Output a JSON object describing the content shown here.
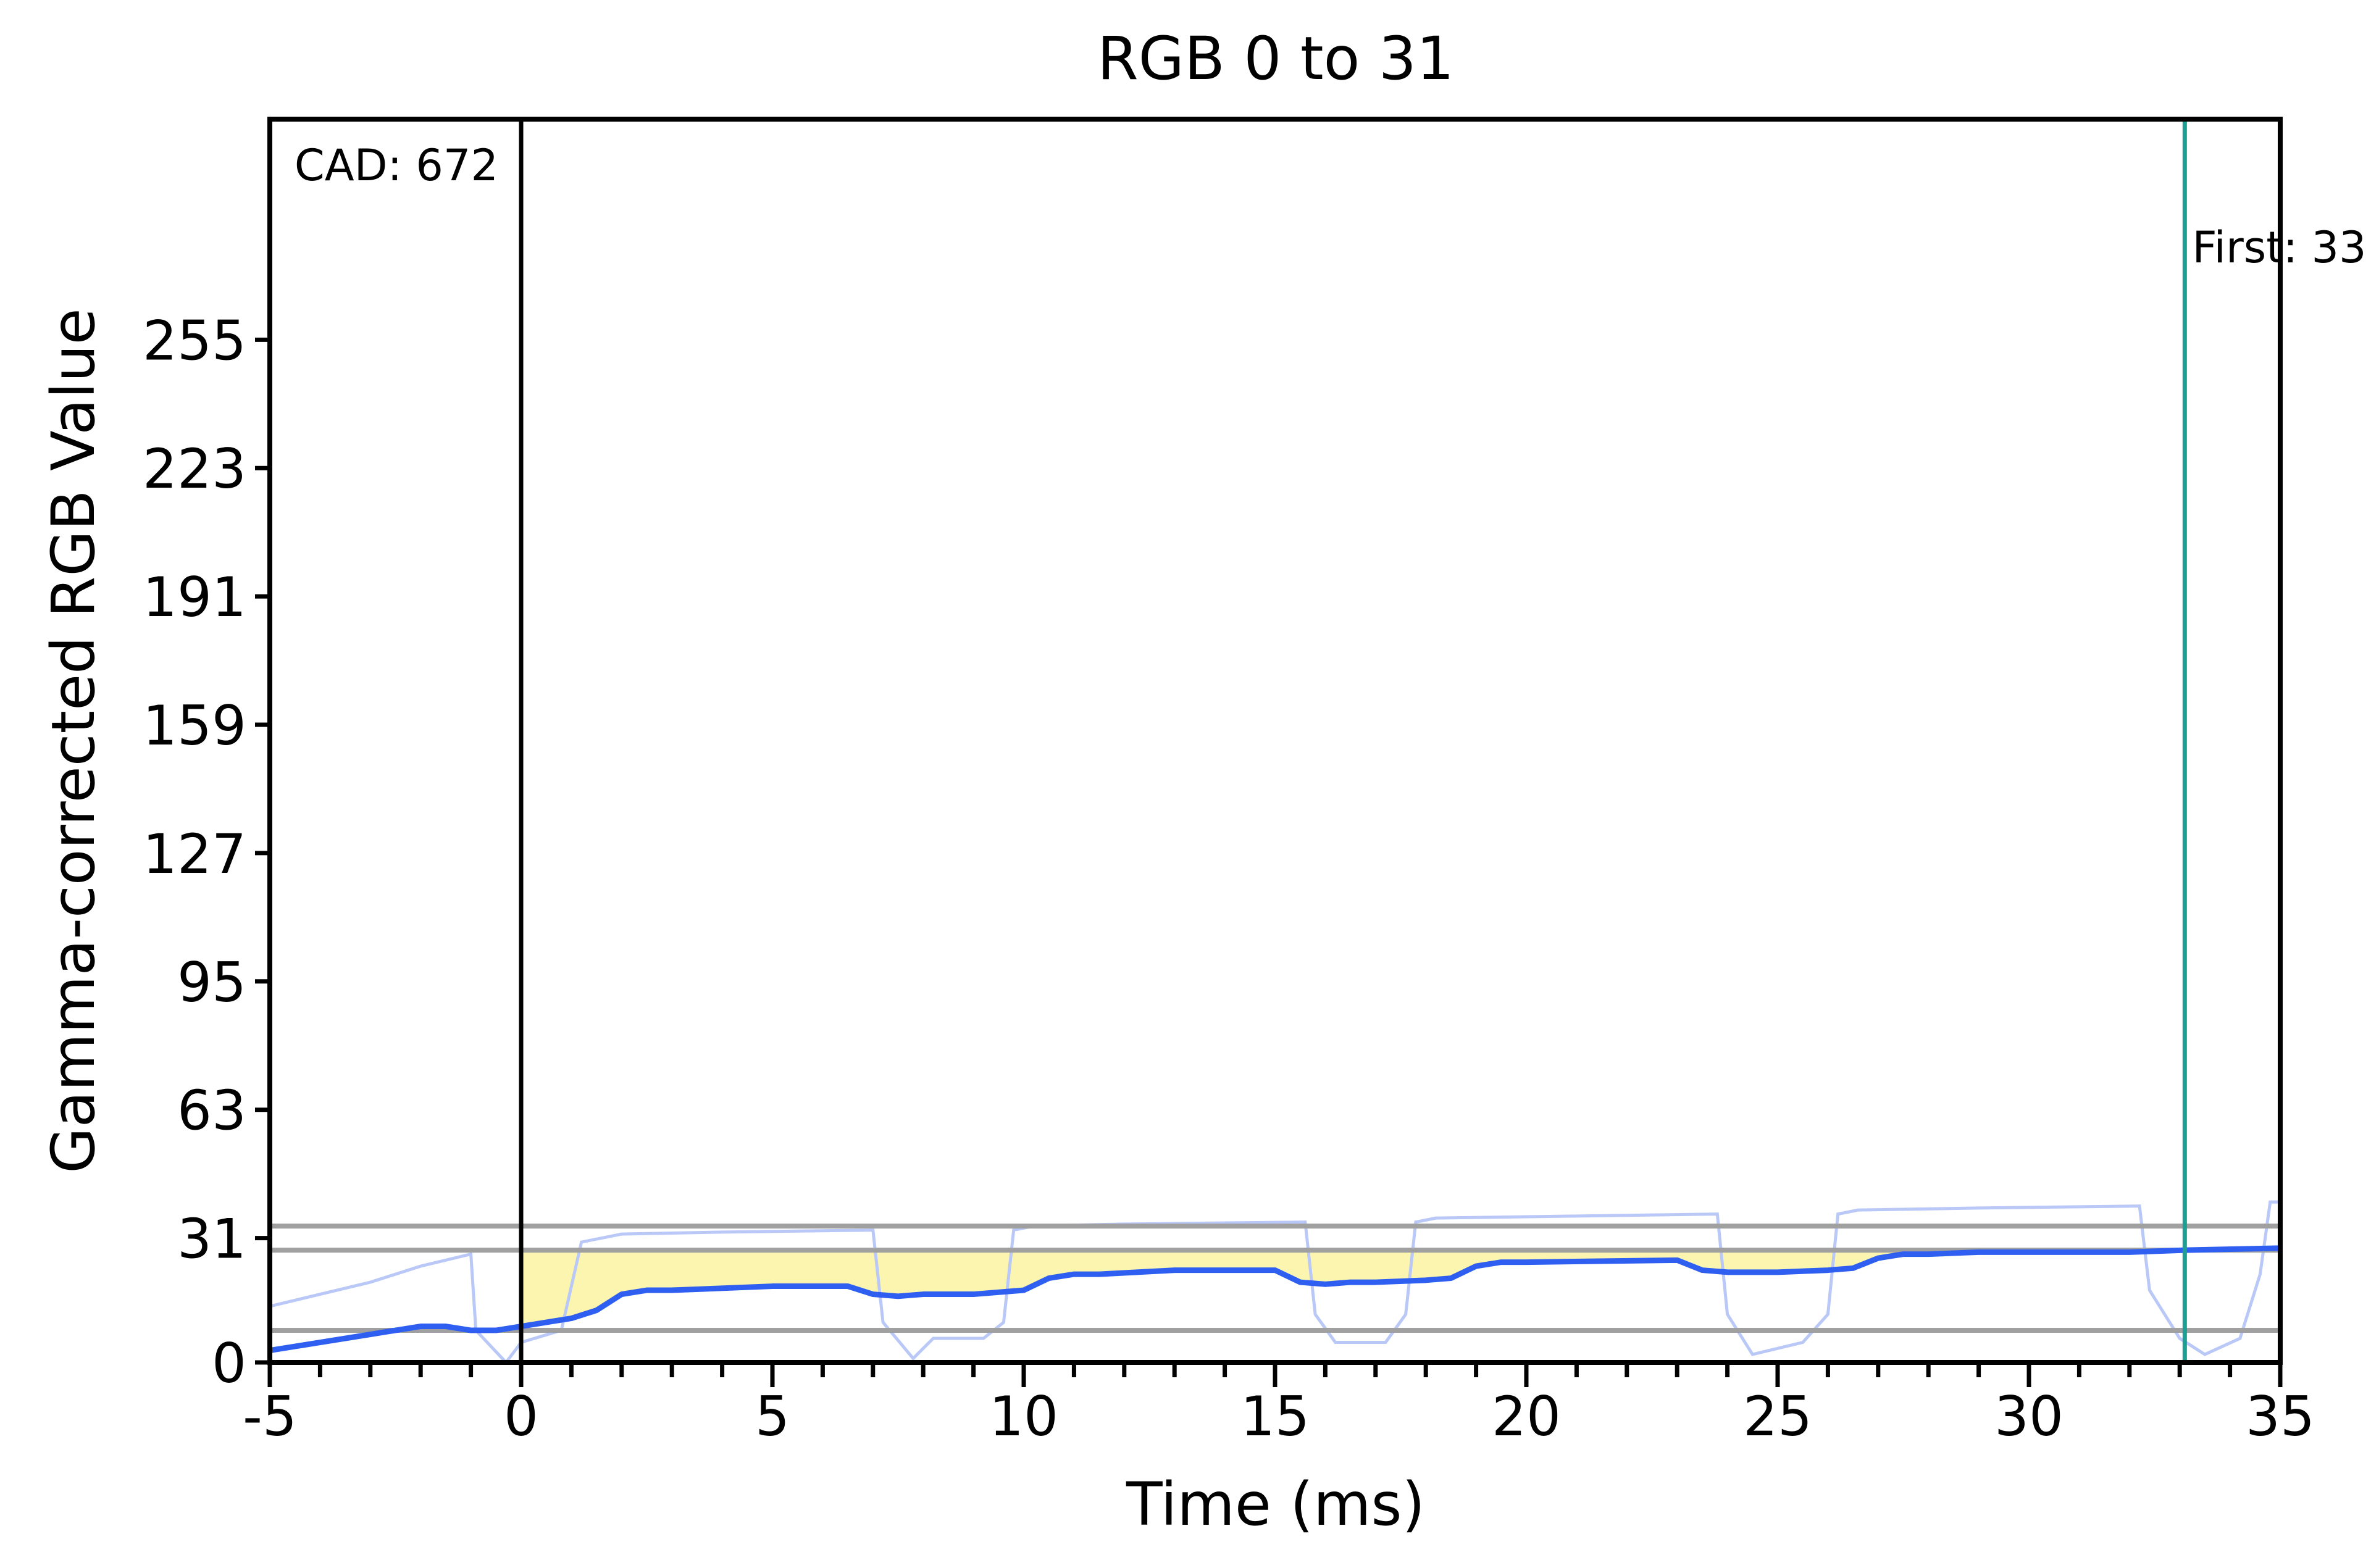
{
  "chart_data": {
    "type": "line",
    "title": "RGB 0 to 31",
    "xlabel": "Time (ms)",
    "ylabel": "Gamma-corrected RGB Value",
    "xlim": [
      -5,
      35
    ],
    "ylim": [
      0,
      310
    ],
    "x_ticks": [
      -5,
      0,
      5,
      10,
      15,
      20,
      25,
      30,
      35
    ],
    "x_tick_labels": [
      "-5",
      "0",
      "5",
      "10",
      "15",
      "20",
      "25",
      "30",
      "35"
    ],
    "y_ticks": [
      0,
      31,
      63,
      95,
      127,
      159,
      191,
      223,
      255
    ],
    "y_tick_labels": [
      "0",
      "31",
      "63",
      "95",
      "127",
      "159",
      "191",
      "223",
      "255"
    ],
    "grid": false,
    "reference_lines": [
      {
        "name": "tolerance-upper",
        "y": 34,
        "color": "#a0a0a0"
      },
      {
        "name": "target",
        "y": 28,
        "color": "#a0a0a0"
      },
      {
        "name": "tolerance-lower",
        "y": 8,
        "color": "#a0a0a0"
      }
    ],
    "vertical_markers": [
      {
        "name": "cad-start",
        "x": 0,
        "label": "CAD: 672",
        "color": "#000000"
      },
      {
        "name": "first",
        "x": 33.1,
        "label": "First: 33.",
        "color": "#1f9e94"
      }
    ],
    "shaded_region": {
      "x_start": 0,
      "x_end": 33.1,
      "upper": 28,
      "color": "#fbf5b0"
    },
    "series": [
      {
        "role": "smoothed",
        "color": "#2f5ff0",
        "points": [
          [
            -5,
            3
          ],
          [
            -4,
            5
          ],
          [
            -3,
            7
          ],
          [
            -2,
            9
          ],
          [
            -1.5,
            9
          ],
          [
            -1,
            8
          ],
          [
            -0.5,
            8
          ],
          [
            0,
            9
          ],
          [
            0.5,
            10
          ],
          [
            1,
            11
          ],
          [
            1.5,
            13
          ],
          [
            2,
            17
          ],
          [
            2.5,
            18
          ],
          [
            3,
            18
          ],
          [
            5,
            19
          ],
          [
            6,
            19
          ],
          [
            6.5,
            19
          ],
          [
            7,
            17
          ],
          [
            7.5,
            16.5
          ],
          [
            8,
            17
          ],
          [
            9,
            17
          ],
          [
            10,
            18
          ],
          [
            10.5,
            21
          ],
          [
            11,
            22
          ],
          [
            11.5,
            22
          ],
          [
            13,
            23
          ],
          [
            14,
            23
          ],
          [
            15,
            23
          ],
          [
            15.5,
            20
          ],
          [
            16,
            19.5
          ],
          [
            16.5,
            20
          ],
          [
            17,
            20
          ],
          [
            18,
            20.5
          ],
          [
            18.5,
            21
          ],
          [
            19,
            24
          ],
          [
            19.5,
            25
          ],
          [
            20,
            25
          ],
          [
            23,
            25.5
          ],
          [
            23.5,
            23
          ],
          [
            24,
            22.5
          ],
          [
            25,
            22.5
          ],
          [
            26,
            23
          ],
          [
            26.5,
            23.5
          ],
          [
            27,
            26
          ],
          [
            27.5,
            27
          ],
          [
            28,
            27
          ],
          [
            29,
            27.5
          ],
          [
            32,
            27.5
          ],
          [
            33.1,
            28
          ],
          [
            35,
            28.5
          ]
        ]
      },
      {
        "role": "raw",
        "color": "#b9c8f7",
        "points": [
          [
            -5,
            14
          ],
          [
            -4,
            17
          ],
          [
            -3,
            20
          ],
          [
            -2,
            24
          ],
          [
            -1,
            27
          ],
          [
            -0.9,
            8
          ],
          [
            -0.3,
            0
          ],
          [
            0,
            5
          ],
          [
            0.8,
            8
          ],
          [
            1.2,
            30
          ],
          [
            2,
            32
          ],
          [
            4,
            32.5
          ],
          [
            7,
            33
          ],
          [
            7.2,
            10
          ],
          [
            7.8,
            1
          ],
          [
            8.2,
            6
          ],
          [
            9.2,
            6
          ],
          [
            9.6,
            10
          ],
          [
            9.8,
            33
          ],
          [
            10.2,
            34
          ],
          [
            12,
            34.5
          ],
          [
            15.6,
            35
          ],
          [
            15.8,
            12
          ],
          [
            16.2,
            5
          ],
          [
            17.2,
            5
          ],
          [
            17.6,
            12
          ],
          [
            17.8,
            35
          ],
          [
            18.2,
            36
          ],
          [
            21,
            36.5
          ],
          [
            23.8,
            37
          ],
          [
            24,
            12
          ],
          [
            24.5,
            2
          ],
          [
            25.5,
            5
          ],
          [
            26,
            12
          ],
          [
            26.2,
            37
          ],
          [
            26.6,
            38
          ],
          [
            29,
            38.5
          ],
          [
            32.2,
            39
          ],
          [
            32.4,
            18
          ],
          [
            33,
            6
          ],
          [
            33.5,
            2
          ],
          [
            34.2,
            6
          ],
          [
            34.6,
            22
          ],
          [
            34.8,
            40
          ],
          [
            35,
            40
          ]
        ]
      }
    ]
  }
}
